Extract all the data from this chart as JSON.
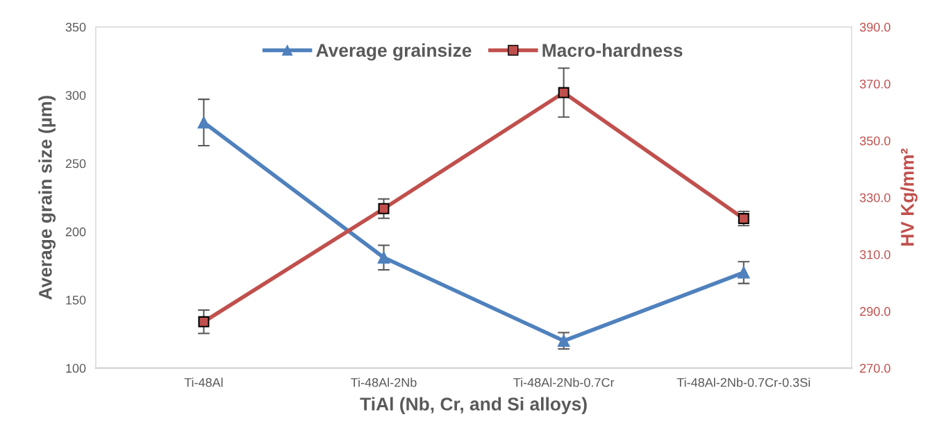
{
  "chart_data": {
    "type": "line",
    "xlabel": "TiAl (Nb, Cr, and Si alloys)",
    "ylabel": "Average grain size (µm)",
    "y2label": "HV Kg/mm²",
    "categories": [
      "Ti-48Al",
      "Ti-48Al-2Nb",
      "Ti-48Al-2Nb-0.7Cr",
      "Ti-48Al-2Nb-0.7Cr-0.3Si"
    ],
    "series": [
      {
        "name": "Average grainsize",
        "color": "#4f81bd",
        "values": [
          280,
          181,
          120,
          170
        ],
        "errors": [
          17,
          9,
          6,
          8
        ],
        "marker": "triangle"
      },
      {
        "name": "Macro-hardness",
        "color": "#c0504d",
        "values": [
          286.3,
          326.1,
          366.9,
          322.6
        ],
        "errors": [
          4.1,
          3.4,
          8.6,
          2.5
        ],
        "marker": "square",
        "axis": "y2"
      }
    ],
    "ylim": [
      100,
      350
    ],
    "yticks": [
      100,
      150,
      200,
      250,
      300,
      350
    ],
    "y2lim": [
      270,
      390
    ],
    "y2ticks": [
      {
        "value": 270,
        "label": "270.0"
      },
      {
        "value": 290,
        "label": "290.0"
      },
      {
        "value": 310,
        "label": "310.0"
      },
      {
        "value": 330,
        "label": "330.0"
      },
      {
        "value": 350,
        "label": "350.0"
      },
      {
        "value": 370,
        "label": "370.0"
      },
      {
        "value": 390,
        "label": "390.0"
      }
    ],
    "grid": false,
    "legend": "top"
  }
}
